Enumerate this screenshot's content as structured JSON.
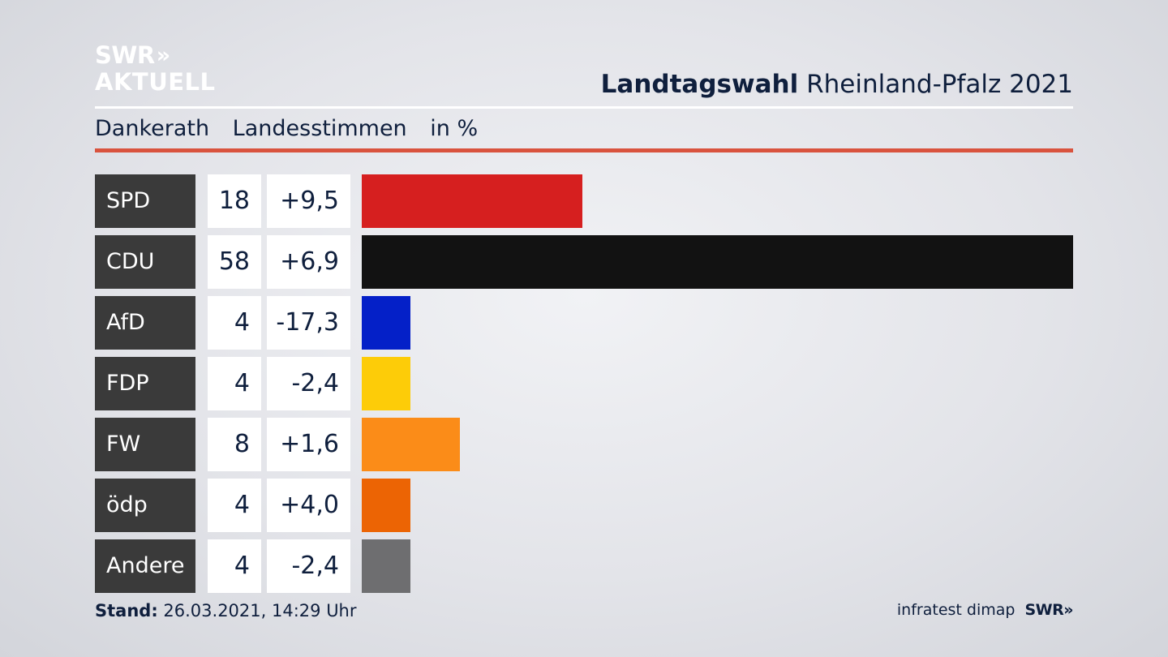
{
  "logo": {
    "line1": "SWR",
    "chevrons": "»",
    "line2": "AKTUELL"
  },
  "header": {
    "title_bold": "Landtagswahl",
    "title_rest": "Rheinland-Pfalz 2021"
  },
  "subtitle": {
    "place": "Dankerath",
    "kind": "Landesstimmen",
    "unit": "in %"
  },
  "footer": {
    "stand_label": "Stand:",
    "stand_value": "26.03.2021, 14:29 Uhr",
    "source": "infratest dimap",
    "brand": "SWR»"
  },
  "colors": {
    "accent_rule": "#d9533e",
    "party_box": "#3a3a3a"
  },
  "chart_data": {
    "type": "bar",
    "categories": [
      "SPD",
      "CDU",
      "AfD",
      "FDP",
      "FW",
      "ödp",
      "Andere"
    ],
    "values": [
      18,
      58,
      4,
      4,
      8,
      4,
      4
    ],
    "value_labels": [
      "18",
      "58",
      "4",
      "4",
      "8",
      "4",
      "4"
    ],
    "changes": [
      "+9,5",
      "+6,9",
      "-17,3",
      "-2,4",
      "+1,6",
      "+4,0",
      "-2,4"
    ],
    "colors": [
      "#d61f1f",
      "#121212",
      "#0420c8",
      "#fdcc08",
      "#fb8c18",
      "#ec6404",
      "#6e6e70"
    ],
    "xlim": [
      0,
      58
    ],
    "orientation": "horizontal",
    "title": "Landtagswahl Rheinland-Pfalz 2021"
  }
}
